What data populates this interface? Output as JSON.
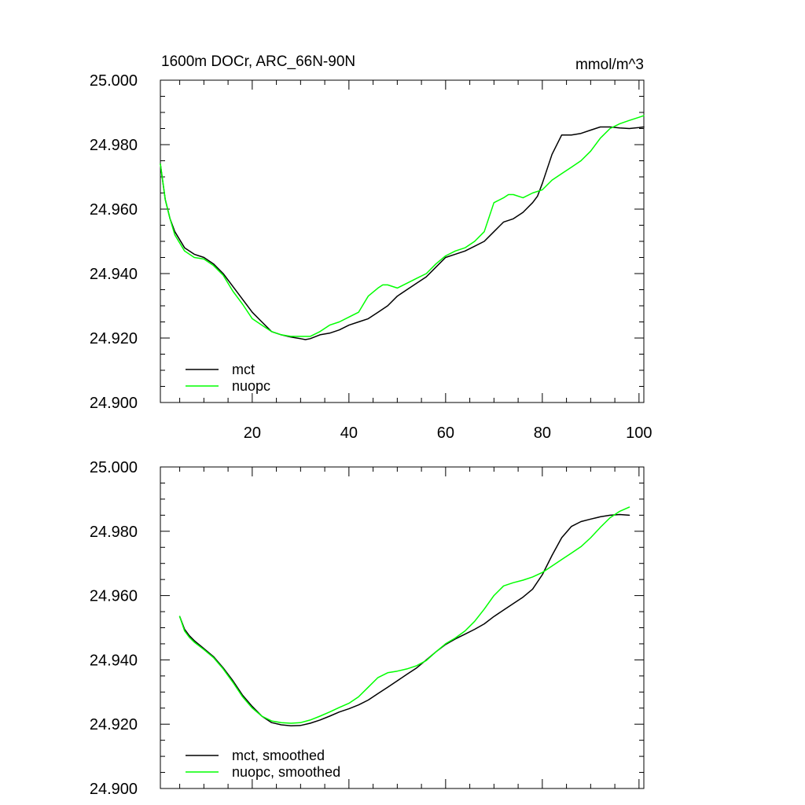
{
  "chart_data": [
    {
      "type": "line",
      "title_left": "1600m DOCr, ARC_66N-90N",
      "title_right": "mmol/m^3",
      "xlabel": "",
      "ylabel": "",
      "xlim": [
        1,
        101
      ],
      "ylim": [
        24.9,
        25.0
      ],
      "x_ticks": [
        20,
        40,
        60,
        80,
        100
      ],
      "x_tick_labels": [
        "20",
        "40",
        "60",
        "80",
        "100"
      ],
      "y_ticks": [
        24.9,
        24.92,
        24.94,
        24.96,
        24.98,
        25.0
      ],
      "y_tick_labels": [
        "24.900",
        "24.920",
        "24.940",
        "24.960",
        "24.980",
        "25.000"
      ],
      "legend_position": "bottom-left",
      "series": [
        {
          "name": "mct",
          "color": "#000000",
          "x": [
            1,
            2,
            3,
            4,
            6,
            8,
            10,
            12,
            14,
            16,
            18,
            20,
            22,
            24,
            26,
            28,
            30,
            31,
            32,
            34,
            36,
            38,
            40,
            42,
            44,
            46,
            48,
            50,
            52,
            54,
            56,
            58,
            60,
            62,
            64,
            66,
            68,
            70,
            72,
            74,
            76,
            78,
            79,
            80,
            82,
            84,
            86,
            88,
            90,
            92,
            94,
            96,
            98,
            100,
            101
          ],
          "values": [
            24.974,
            24.963,
            24.957,
            24.953,
            24.948,
            24.946,
            24.945,
            24.943,
            24.94,
            24.936,
            24.932,
            24.928,
            24.925,
            24.922,
            24.921,
            24.9203,
            24.9198,
            24.9195,
            24.9198,
            24.921,
            24.9215,
            24.9225,
            24.924,
            24.925,
            24.926,
            24.928,
            24.93,
            24.933,
            24.935,
            24.937,
            24.939,
            24.942,
            24.945,
            24.946,
            24.947,
            24.9485,
            24.95,
            24.953,
            24.956,
            24.957,
            24.959,
            24.962,
            24.964,
            24.968,
            24.977,
            24.983,
            24.983,
            24.9835,
            24.9845,
            24.9855,
            24.9855,
            24.9852,
            24.985,
            24.9853,
            24.9855
          ]
        },
        {
          "name": "nuopc",
          "color": "#00ff00",
          "x": [
            1,
            2,
            3,
            4,
            6,
            8,
            10,
            12,
            14,
            16,
            18,
            20,
            22,
            24,
            26,
            28,
            30,
            32,
            34,
            36,
            38,
            40,
            42,
            44,
            46,
            47,
            48,
            50,
            52,
            54,
            56,
            58,
            60,
            62,
            64,
            66,
            68,
            70,
            72,
            73,
            74,
            76,
            78,
            80,
            82,
            84,
            86,
            88,
            90,
            92,
            94,
            96,
            98,
            100,
            101
          ],
          "values": [
            24.974,
            24.963,
            24.957,
            24.952,
            24.947,
            24.945,
            24.9445,
            24.9425,
            24.9395,
            24.9345,
            24.9305,
            24.926,
            24.924,
            24.922,
            24.921,
            24.9205,
            24.9205,
            24.9205,
            24.922,
            24.924,
            24.925,
            24.9265,
            24.928,
            24.933,
            24.9355,
            24.9365,
            24.9365,
            24.9355,
            24.937,
            24.9385,
            24.94,
            24.943,
            24.9455,
            24.947,
            24.948,
            24.95,
            24.953,
            24.962,
            24.9635,
            24.9645,
            24.9645,
            24.9635,
            24.965,
            24.966,
            24.969,
            24.971,
            24.973,
            24.975,
            24.978,
            24.982,
            24.985,
            24.9865,
            24.9875,
            24.9885,
            24.989
          ]
        }
      ]
    },
    {
      "type": "line",
      "title_left": "",
      "title_right": "",
      "xlabel": "",
      "ylabel": "",
      "xlim": [
        1,
        101
      ],
      "ylim": [
        24.9,
        25.0
      ],
      "x_ticks": [
        20,
        40,
        60,
        80,
        100
      ],
      "x_tick_labels": [],
      "y_ticks": [
        24.9,
        24.92,
        24.94,
        24.96,
        24.98,
        25.0
      ],
      "y_tick_labels": [
        "24.900",
        "24.920",
        "24.940",
        "24.960",
        "24.980",
        "25.000"
      ],
      "legend_position": "bottom-left",
      "series": [
        {
          "name": "mct, smoothed",
          "color": "#000000",
          "x": [
            5,
            6,
            7,
            8,
            10,
            12,
            14,
            16,
            18,
            20,
            22,
            24,
            26,
            28,
            30,
            32,
            34,
            36,
            38,
            40,
            42,
            44,
            46,
            48,
            50,
            52,
            54,
            56,
            58,
            60,
            62,
            64,
            66,
            68,
            70,
            72,
            74,
            76,
            78,
            80,
            82,
            84,
            86,
            88,
            90,
            92,
            94,
            96,
            98
          ],
          "values": [
            24.9535,
            24.9495,
            24.9475,
            24.946,
            24.9435,
            24.941,
            24.9375,
            24.9335,
            24.929,
            24.9255,
            24.9225,
            24.9205,
            24.9198,
            24.9195,
            24.9196,
            24.9203,
            24.9213,
            24.9225,
            24.9238,
            24.9248,
            24.926,
            24.9275,
            24.9295,
            24.9315,
            24.9335,
            24.9355,
            24.9375,
            24.94,
            24.9425,
            24.9448,
            24.9465,
            24.948,
            24.9495,
            24.9512,
            24.9535,
            24.9555,
            24.9575,
            24.9595,
            24.962,
            24.9665,
            24.9725,
            24.978,
            24.9815,
            24.983,
            24.9838,
            24.9845,
            24.985,
            24.9852,
            24.985
          ]
        },
        {
          "name": "nuopc, smoothed",
          "color": "#00ff00",
          "x": [
            5,
            6,
            7,
            8,
            10,
            12,
            14,
            16,
            18,
            20,
            22,
            24,
            26,
            28,
            30,
            32,
            34,
            36,
            38,
            40,
            42,
            44,
            46,
            48,
            50,
            52,
            54,
            56,
            58,
            60,
            62,
            64,
            66,
            68,
            70,
            72,
            74,
            76,
            78,
            80,
            82,
            84,
            86,
            88,
            90,
            92,
            94,
            96,
            98
          ],
          "values": [
            24.9535,
            24.949,
            24.947,
            24.9455,
            24.9432,
            24.9407,
            24.9372,
            24.933,
            24.9285,
            24.925,
            24.9225,
            24.921,
            24.9205,
            24.9203,
            24.9205,
            24.9213,
            24.9225,
            24.9238,
            24.9252,
            24.9265,
            24.9285,
            24.9315,
            24.9345,
            24.936,
            24.9365,
            24.9372,
            24.9382,
            24.9398,
            24.9425,
            24.945,
            24.9468,
            24.949,
            24.952,
            24.9558,
            24.96,
            24.963,
            24.964,
            24.9648,
            24.9658,
            24.9672,
            24.9692,
            24.9712,
            24.9732,
            24.9752,
            24.978,
            24.9812,
            24.9842,
            24.9862,
            24.9875
          ]
        }
      ]
    }
  ]
}
